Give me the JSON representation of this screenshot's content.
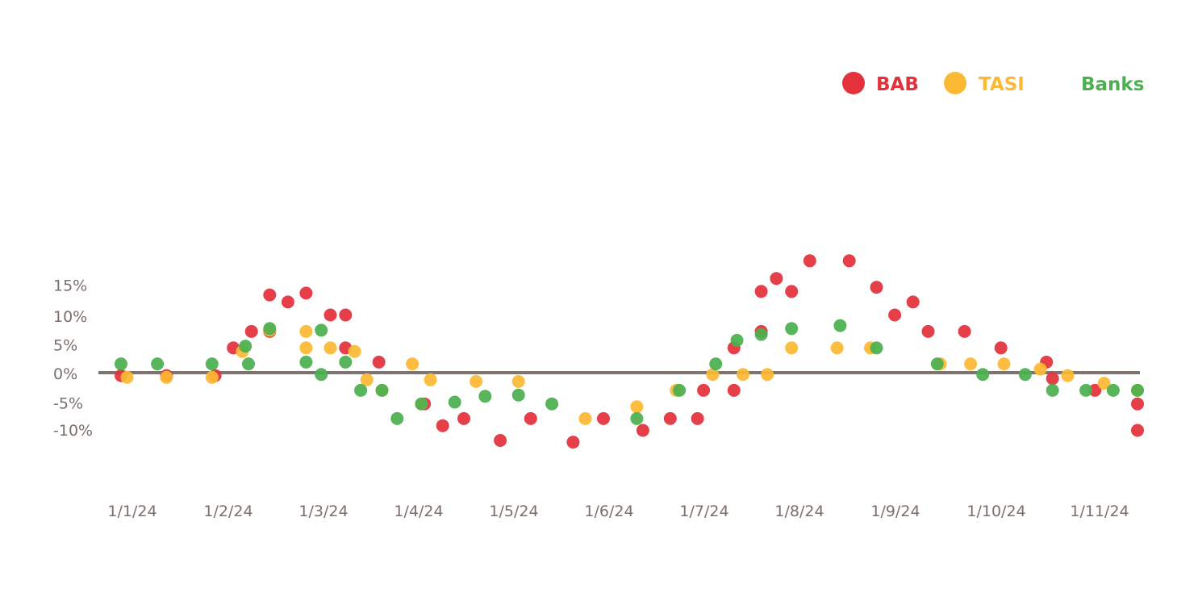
{
  "chart_data": {
    "type": "scatter",
    "title": "",
    "xlabel": "",
    "ylabel": "",
    "ylim": [
      -15,
      20
    ],
    "grid": false,
    "legend_position": "top-right",
    "x_ticks": [
      "1/1/24",
      "1/2/24",
      "1/3/24",
      "1/4/24",
      "1/5/24",
      "1/6/24",
      "1/7/24",
      "1/8/24",
      "1/9/24",
      "1/10/24",
      "1/11/24"
    ],
    "y_ticks": [
      15,
      10,
      5,
      0,
      -5,
      -10
    ],
    "y_tick_labels": [
      "15%",
      "10%",
      "5%",
      "0%",
      "-5%",
      "-10%"
    ],
    "zero_line_color": "#7d7370",
    "series": [
      {
        "name": "BAB",
        "color": "#e3323b",
        "points": [
          [
            "2024-01-01",
            -0.5
          ],
          [
            "2024-01-16",
            -0.5
          ],
          [
            "2024-02-01",
            -0.5
          ],
          [
            "2024-02-07",
            4.2
          ],
          [
            "2024-02-13",
            7.0
          ],
          [
            "2024-02-19",
            7.0
          ],
          [
            "2024-02-19",
            13.2
          ],
          [
            "2024-02-25",
            12.0
          ],
          [
            "2024-03-02",
            13.5
          ],
          [
            "2024-03-10",
            9.8
          ],
          [
            "2024-03-15",
            9.8
          ],
          [
            "2024-03-15",
            4.2
          ],
          [
            "2024-03-26",
            1.8
          ],
          [
            "2024-04-10",
            -5.3
          ],
          [
            "2024-04-16",
            -9.0
          ],
          [
            "2024-04-23",
            -7.8
          ],
          [
            "2024-05-05",
            -11.5
          ],
          [
            "2024-05-15",
            -7.8
          ],
          [
            "2024-05-29",
            -11.8
          ],
          [
            "2024-06-08",
            -7.8
          ],
          [
            "2024-06-21",
            -9.8
          ],
          [
            "2024-06-30",
            -7.8
          ],
          [
            "2024-07-09",
            -7.8
          ],
          [
            "2024-07-11",
            -3.0
          ],
          [
            "2024-07-21",
            4.2
          ],
          [
            "2024-07-21",
            -3.0
          ],
          [
            "2024-07-30",
            13.8
          ],
          [
            "2024-07-30",
            7.0
          ],
          [
            "2024-08-04",
            16.0
          ],
          [
            "2024-08-09",
            13.8
          ],
          [
            "2024-08-15",
            19.0
          ],
          [
            "2024-08-28",
            19.0
          ],
          [
            "2024-09-06",
            14.5
          ],
          [
            "2024-09-12",
            9.8
          ],
          [
            "2024-09-18",
            12.0
          ],
          [
            "2024-09-23",
            7.0
          ],
          [
            "2024-10-05",
            7.0
          ],
          [
            "2024-10-17",
            4.2
          ],
          [
            "2024-11-01",
            1.8
          ],
          [
            "2024-11-03",
            -1.0
          ],
          [
            "2024-11-17",
            -3.0
          ],
          [
            "2024-12-01",
            -5.3
          ],
          [
            "2024-12-01",
            -9.8
          ]
        ]
      },
      {
        "name": "TASI",
        "color": "#fbb934",
        "points": [
          [
            "2024-01-03",
            -0.8
          ],
          [
            "2024-01-16",
            -0.8
          ],
          [
            "2024-01-31",
            -0.8
          ],
          [
            "2024-02-10",
            3.6
          ],
          [
            "2024-02-19",
            7.2
          ],
          [
            "2024-03-02",
            7.0
          ],
          [
            "2024-03-02",
            4.2
          ],
          [
            "2024-03-10",
            4.2
          ],
          [
            "2024-03-18",
            3.6
          ],
          [
            "2024-03-22",
            -1.2
          ],
          [
            "2024-03-27",
            -3.0
          ],
          [
            "2024-04-06",
            1.5
          ],
          [
            "2024-04-09",
            -5.3
          ],
          [
            "2024-04-12",
            -1.2
          ],
          [
            "2024-04-27",
            -1.5
          ],
          [
            "2024-05-11",
            -1.5
          ],
          [
            "2024-06-02",
            -7.8
          ],
          [
            "2024-06-19",
            -5.8
          ],
          [
            "2024-07-02",
            -3.0
          ],
          [
            "2024-07-14",
            -0.3
          ],
          [
            "2024-07-24",
            -0.3
          ],
          [
            "2024-08-01",
            -0.3
          ],
          [
            "2024-08-09",
            4.2
          ],
          [
            "2024-08-24",
            4.2
          ],
          [
            "2024-09-04",
            4.2
          ],
          [
            "2024-09-27",
            1.5
          ],
          [
            "2024-10-07",
            1.5
          ],
          [
            "2024-10-18",
            1.5
          ],
          [
            "2024-10-30",
            0.6
          ],
          [
            "2024-11-08",
            -0.5
          ],
          [
            "2024-11-20",
            -1.8
          ],
          [
            "2024-12-01",
            -3.0
          ]
        ]
      },
      {
        "name": "Banks",
        "color": "#4caf50",
        "points": [
          [
            "2024-01-01",
            1.5
          ],
          [
            "2024-01-13",
            1.5
          ],
          [
            "2024-01-31",
            1.5
          ],
          [
            "2024-02-12",
            1.5
          ],
          [
            "2024-02-11",
            4.5
          ],
          [
            "2024-02-19",
            7.5
          ],
          [
            "2024-03-02",
            1.8
          ],
          [
            "2024-03-07",
            7.2
          ],
          [
            "2024-03-07",
            -0.3
          ],
          [
            "2024-03-15",
            1.8
          ],
          [
            "2024-03-20",
            -3.0
          ],
          [
            "2024-03-27",
            -3.0
          ],
          [
            "2024-04-01",
            -7.8
          ],
          [
            "2024-04-09",
            -5.3
          ],
          [
            "2024-04-20",
            -5.0
          ],
          [
            "2024-04-30",
            -4.0
          ],
          [
            "2024-05-11",
            -3.8
          ],
          [
            "2024-05-22",
            -5.3
          ],
          [
            "2024-06-19",
            -7.8
          ],
          [
            "2024-07-03",
            -3.0
          ],
          [
            "2024-07-15",
            1.5
          ],
          [
            "2024-07-22",
            5.5
          ],
          [
            "2024-07-30",
            6.5
          ],
          [
            "2024-08-09",
            7.5
          ],
          [
            "2024-08-25",
            8.0
          ],
          [
            "2024-09-06",
            4.2
          ],
          [
            "2024-09-26",
            1.5
          ],
          [
            "2024-10-11",
            -0.3
          ],
          [
            "2024-10-25",
            -0.3
          ],
          [
            "2024-11-03",
            -3.0
          ],
          [
            "2024-11-14",
            -3.0
          ],
          [
            "2024-11-23",
            -3.0
          ],
          [
            "2024-12-01",
            -3.0
          ]
        ]
      }
    ]
  }
}
